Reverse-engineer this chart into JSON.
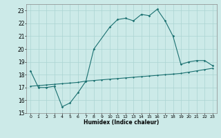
{
  "title": "",
  "xlabel": "Humidex (Indice chaleur)",
  "xlim": [
    -0.5,
    23.5
  ],
  "ylim": [
    15,
    23.5
  ],
  "yticks": [
    15,
    16,
    17,
    18,
    19,
    20,
    21,
    22,
    23
  ],
  "xticks": [
    0,
    1,
    2,
    3,
    4,
    5,
    6,
    7,
    8,
    9,
    10,
    11,
    12,
    13,
    14,
    15,
    16,
    17,
    18,
    19,
    20,
    21,
    22,
    23
  ],
  "bg_color": "#cceae8",
  "grid_color": "#aad4d2",
  "line_color": "#1a7070",
  "curve1_x": [
    0,
    1,
    2,
    3,
    4,
    5,
    6,
    7,
    8,
    10,
    11,
    12,
    13,
    14,
    15,
    16,
    17,
    18,
    19,
    20,
    21,
    22,
    23
  ],
  "curve1_y": [
    18.3,
    17.0,
    17.0,
    17.1,
    15.5,
    15.8,
    16.6,
    17.5,
    20.0,
    21.7,
    22.3,
    22.4,
    22.2,
    22.7,
    22.6,
    23.1,
    22.2,
    21.0,
    18.8,
    19.0,
    19.1,
    19.1,
    18.7
  ],
  "curve2_x": [
    0,
    1,
    2,
    3,
    4,
    5,
    6,
    7,
    8,
    9,
    10,
    11,
    12,
    13,
    14,
    15,
    16,
    17,
    18,
    19,
    20,
    21,
    22,
    23
  ],
  "curve2_y": [
    17.1,
    17.15,
    17.2,
    17.25,
    17.3,
    17.35,
    17.4,
    17.5,
    17.55,
    17.6,
    17.65,
    17.7,
    17.75,
    17.8,
    17.85,
    17.9,
    17.95,
    18.0,
    18.05,
    18.1,
    18.2,
    18.3,
    18.4,
    18.5
  ]
}
